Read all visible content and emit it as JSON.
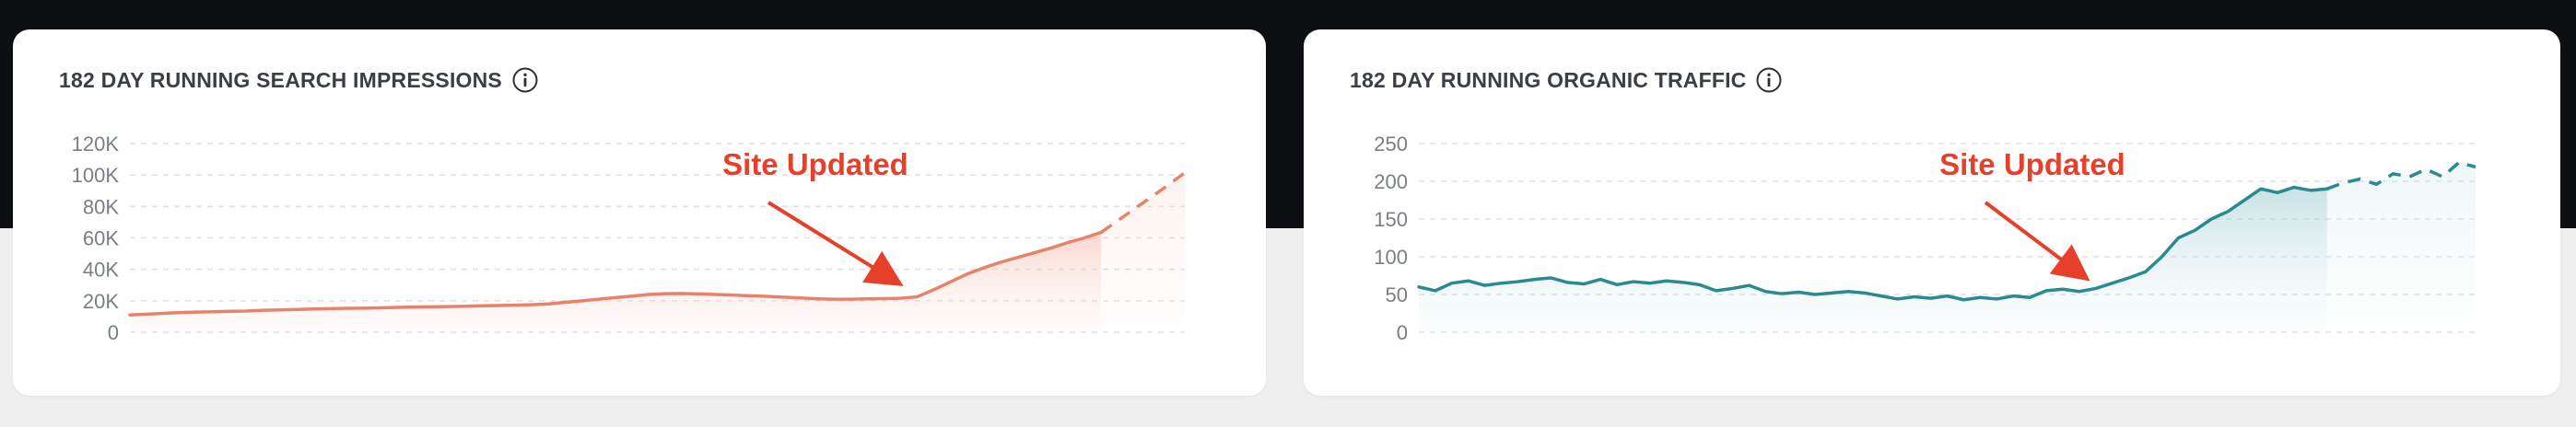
{
  "cards": [
    {
      "title": "182 DAY RUNNING SEARCH IMPRESSIONS",
      "info_icon": "info-icon"
    },
    {
      "title": "182 DAY RUNNING ORGANIC TRAFFIC",
      "info_icon": "info-icon"
    }
  ],
  "chart_data": [
    {
      "type": "area",
      "ylim": [
        0,
        120000
      ],
      "yticks": [
        0,
        20000,
        40000,
        60000,
        80000,
        100000,
        120000
      ],
      "ytick_labels": [
        "0",
        "20K",
        "40K",
        "60K",
        "80K",
        "100K",
        "120K"
      ],
      "grid": true,
      "color": "#e8836a",
      "x": [
        0,
        10,
        20,
        30,
        40,
        50,
        60,
        70,
        80,
        90,
        100,
        110,
        120,
        130,
        140,
        150,
        160,
        170,
        180,
        190,
        200,
        210,
        220,
        230,
        240,
        250,
        260,
        270,
        280,
        290,
        300,
        310,
        320,
        330,
        340,
        350,
        360,
        370,
        380,
        390,
        400,
        410,
        420,
        430,
        440,
        450,
        460,
        470,
        480,
        490,
        500,
        510,
        520,
        530,
        540,
        550,
        560,
        570,
        580,
        590,
        600,
        610,
        620,
        630
      ],
      "values": [
        11000,
        11500,
        12000,
        12500,
        12800,
        13000,
        13300,
        13500,
        14000,
        14200,
        14500,
        14800,
        15000,
        15200,
        15300,
        15500,
        15800,
        16000,
        16200,
        16300,
        16500,
        16800,
        17000,
        17200,
        17500,
        18000,
        19000,
        20000,
        21000,
        22000,
        23000,
        24000,
        24500,
        24600,
        24400,
        24000,
        23600,
        23200,
        22800,
        22300,
        21800,
        21300,
        21000,
        21000,
        21200,
        21400,
        21600,
        22500,
        27000,
        32000,
        37000,
        41000,
        44500,
        47500,
        50500,
        53500,
        57000,
        60000,
        63500,
        71000,
        78500,
        86000,
        93500,
        101500
      ],
      "forecast_from_index": 58,
      "annotation": {
        "text": "Site Updated",
        "x": 460,
        "y": 22500
      }
    },
    {
      "type": "area",
      "ylim": [
        0,
        250
      ],
      "yticks": [
        0,
        50,
        100,
        150,
        200,
        250
      ],
      "ytick_labels": [
        "0",
        "50",
        "100",
        "150",
        "200",
        "250"
      ],
      "grid": true,
      "color": "#2a8a8f",
      "x": [
        0,
        10,
        20,
        30,
        40,
        50,
        60,
        70,
        80,
        90,
        100,
        110,
        120,
        130,
        140,
        150,
        160,
        170,
        180,
        190,
        200,
        210,
        220,
        230,
        240,
        250,
        260,
        270,
        280,
        290,
        300,
        310,
        320,
        330,
        340,
        350,
        360,
        370,
        380,
        390,
        400,
        410,
        420,
        430,
        440,
        450,
        460,
        470,
        480,
        490,
        500,
        510,
        520,
        530,
        540,
        550,
        560,
        570,
        580,
        590,
        600,
        610,
        620,
        630,
        640
      ],
      "values": [
        60,
        55,
        65,
        68,
        62,
        65,
        67,
        70,
        72,
        66,
        64,
        70,
        63,
        67,
        65,
        68,
        66,
        63,
        55,
        58,
        62,
        54,
        51,
        53,
        50,
        52,
        54,
        52,
        48,
        44,
        47,
        45,
        48,
        43,
        46,
        44,
        48,
        46,
        55,
        57,
        54,
        58,
        65,
        72,
        80,
        100,
        125,
        135,
        150,
        160,
        175,
        190,
        185,
        192,
        188,
        190,
        198,
        203,
        196,
        210,
        206,
        216,
        206,
        225,
        219
      ],
      "forecast_from_index": 55,
      "annotation": {
        "text": "Site Updated",
        "x": 405,
        "y": 55
      }
    }
  ]
}
